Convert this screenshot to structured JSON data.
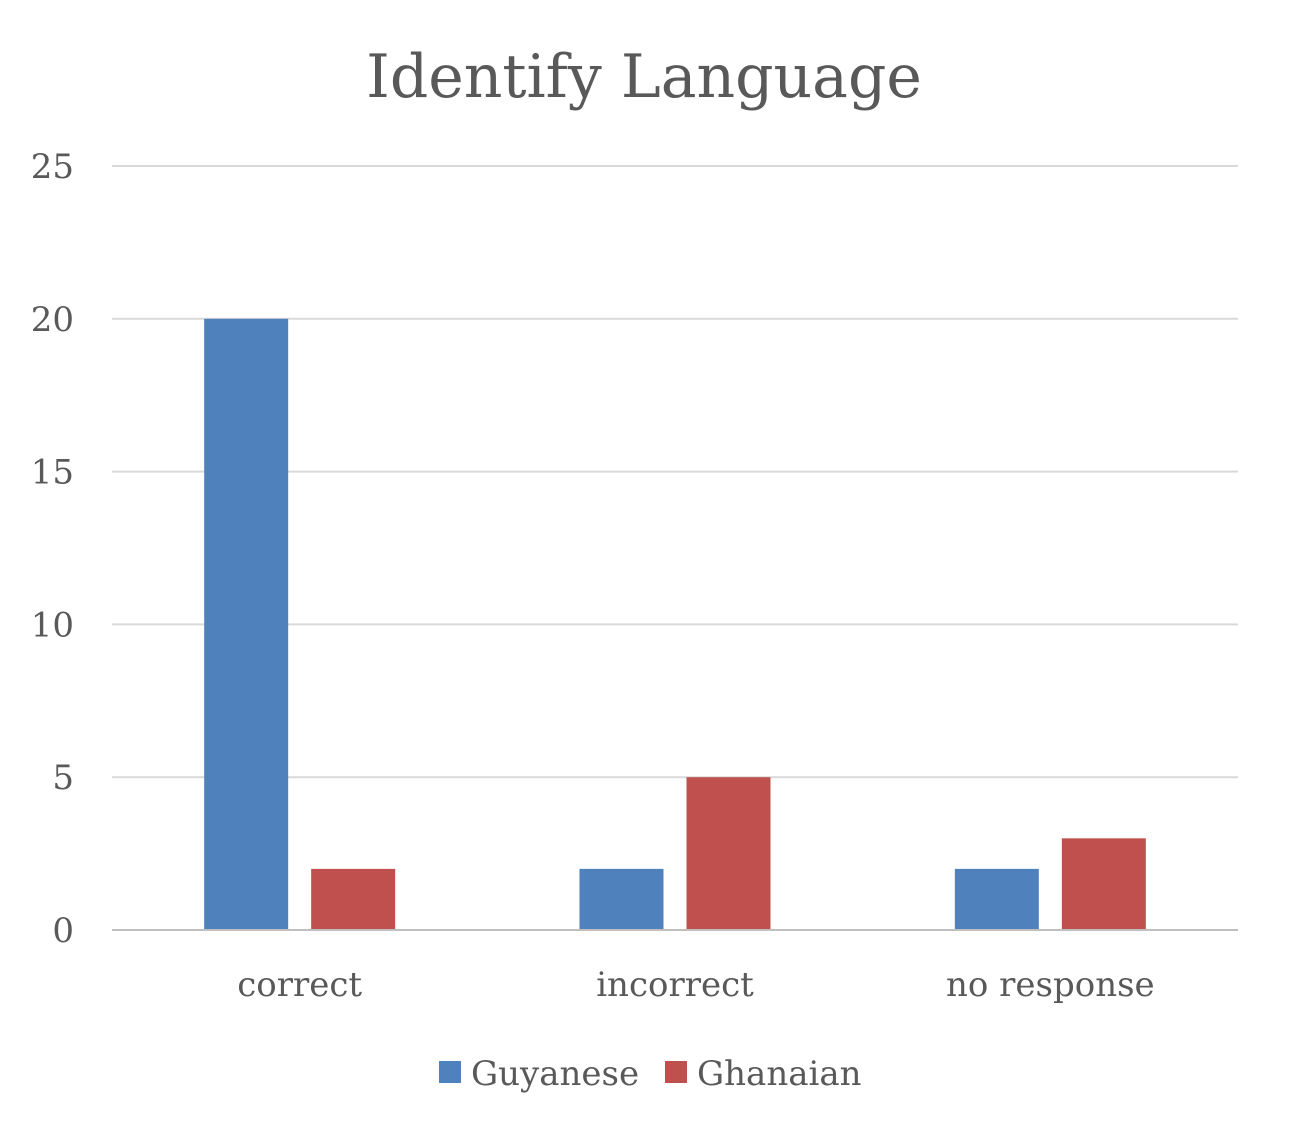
{
  "chart_data": {
    "type": "bar",
    "title": "Identify Language",
    "xlabel": "",
    "ylabel": "",
    "categories": [
      "correct",
      "incorrect",
      "no response"
    ],
    "series": [
      {
        "name": "Guyanese",
        "values": [
          20,
          2,
          2
        ],
        "color": "#4f81bd"
      },
      {
        "name": "Ghanaian",
        "values": [
          2,
          5,
          3
        ],
        "color": "#c0504d"
      }
    ],
    "ylim": [
      0,
      25
    ],
    "yticks": [
      0,
      5,
      10,
      15,
      20,
      25
    ],
    "grid": true,
    "legend": "bottom"
  }
}
